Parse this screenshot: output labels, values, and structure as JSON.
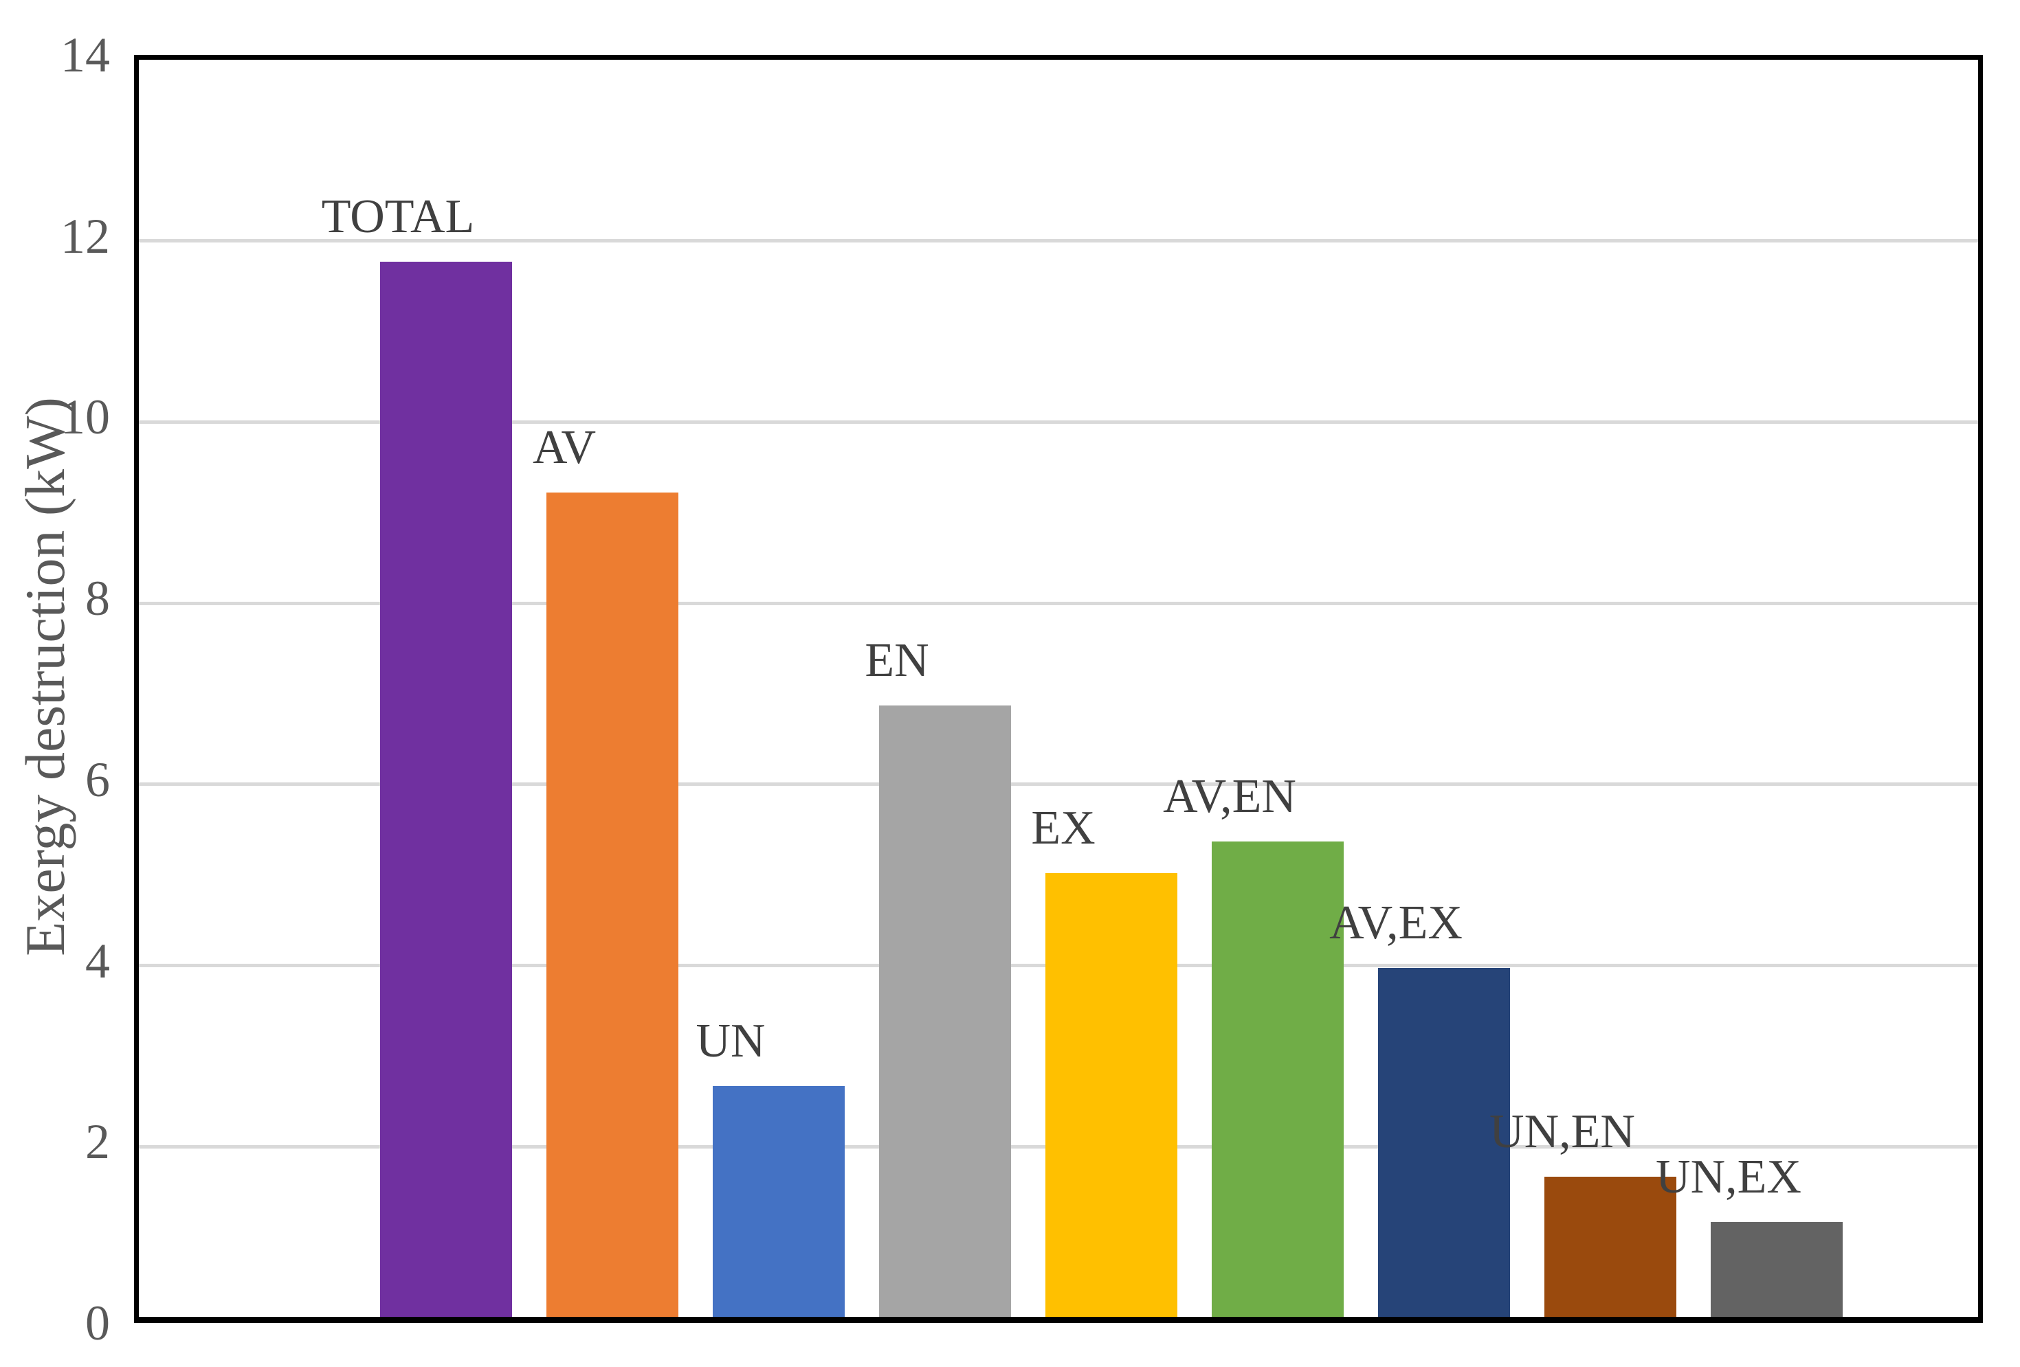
{
  "chart_data": {
    "type": "bar",
    "title": "",
    "xlabel": "",
    "ylabel": "Exergy destruction (kW)",
    "ylim": [
      0,
      14
    ],
    "yticks": [
      0,
      2,
      4,
      6,
      8,
      10,
      12,
      14
    ],
    "grid": "horizontal",
    "gridline_step": 2,
    "legend_position": "none",
    "bar_label_position": "above",
    "categories": [
      "TOTAL",
      "AV",
      "UN",
      "EN",
      "EX",
      "AV,EN",
      "AV,EX",
      "UN,EN",
      "UN,EX"
    ],
    "values": [
      11.65,
      9.1,
      2.55,
      6.75,
      4.9,
      5.25,
      3.85,
      1.55,
      1.05
    ],
    "bar_colors": [
      "#7030A0",
      "#ED7D31",
      "#4472C4",
      "#A5A5A5",
      "#FFC000",
      "#70AD47",
      "#264478",
      "#9A4A0D",
      "#636363"
    ]
  },
  "styles": {
    "background_color": "#FFFFFF",
    "axis_border_color": "#000000",
    "gridline_color": "#D9D9D9",
    "tick_text_color": "#595959",
    "bar_label_color": "#404040",
    "axis_title_color": "#595959"
  }
}
